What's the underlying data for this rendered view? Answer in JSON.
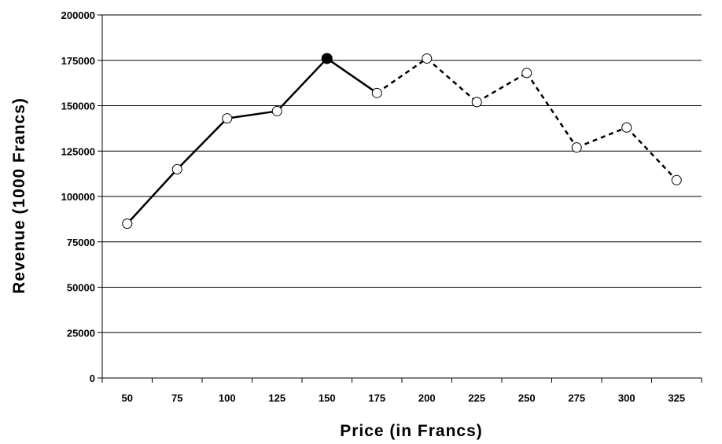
{
  "chart_data": {
    "type": "line",
    "title": "",
    "xlabel": "Price (in Francs)",
    "ylabel": "Revenue (1000 Francs)",
    "categories": [
      50,
      75,
      100,
      125,
      150,
      175,
      200,
      225,
      250,
      275,
      300,
      325
    ],
    "values": [
      85000,
      115000,
      143000,
      147000,
      176000,
      157000,
      176000,
      152000,
      168000,
      127000,
      138000,
      109000
    ],
    "ylim": [
      0,
      200000
    ],
    "yticks": [
      0,
      25000,
      50000,
      75000,
      100000,
      125000,
      150000,
      175000,
      200000
    ],
    "grid": true,
    "line_style": {
      "solid_through_category": 175,
      "dashed_from_category": 175
    },
    "highlighted_category": 150,
    "marker_colors": {
      "open": "#ffffff",
      "filled": "#000000"
    }
  }
}
